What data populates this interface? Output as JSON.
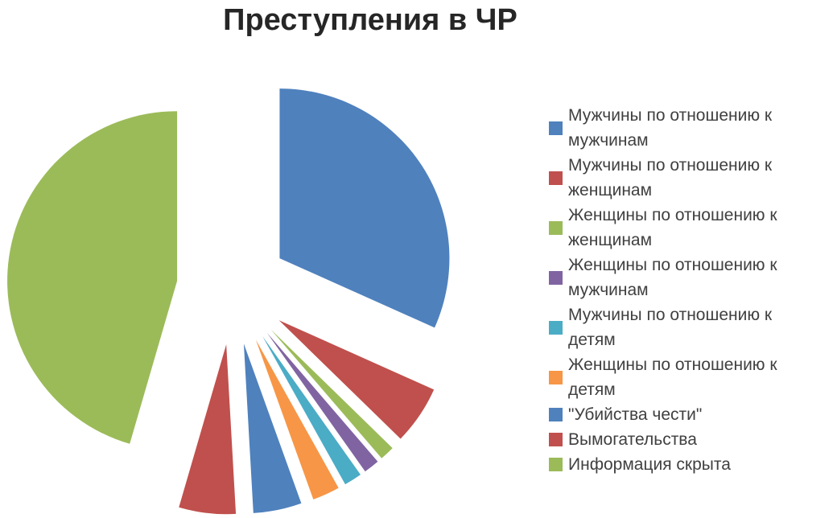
{
  "chart_data": {
    "type": "pie",
    "title": "Преступления в ЧР",
    "exploded": true,
    "explode_pct_of_radius": 33,
    "start_angle_deg": 0,
    "direction": "clockwise",
    "legend_position": "right",
    "data_labels_shown": false,
    "value_units": "percent_share_estimated_from_angles",
    "slices": [
      {
        "label": "Мужчины по отношению к мужчинам",
        "value_pct": 31.7,
        "color": "#4F81BD"
      },
      {
        "label": "Мужчины по отношению к женщинам",
        "value_pct": 5.6,
        "color": "#C0504D"
      },
      {
        "label": "Женщины по отношению к женщинам",
        "value_pct": 1.4,
        "color": "#9BBB59"
      },
      {
        "label": "Женщины по отношению к мужчинам",
        "value_pct": 1.5,
        "color": "#8064A2"
      },
      {
        "label": "Мужчины по отношению к детям",
        "value_pct": 1.7,
        "color": "#4BACC6"
      },
      {
        "label": "Женщины по отношению к детям",
        "value_pct": 2.6,
        "color": "#F79646"
      },
      {
        "label": "\"Убийства чести\"",
        "value_pct": 4.6,
        "color": "#4F81BD"
      },
      {
        "label": "Вымогательства",
        "value_pct": 5.4,
        "color": "#C0504D"
      },
      {
        "label": "Информация скрыта",
        "value_pct": 45.5,
        "color": "#9BBB59"
      }
    ],
    "background_color": "#ffffff",
    "title_color": "#262626",
    "legend_text_color": "#404040"
  }
}
